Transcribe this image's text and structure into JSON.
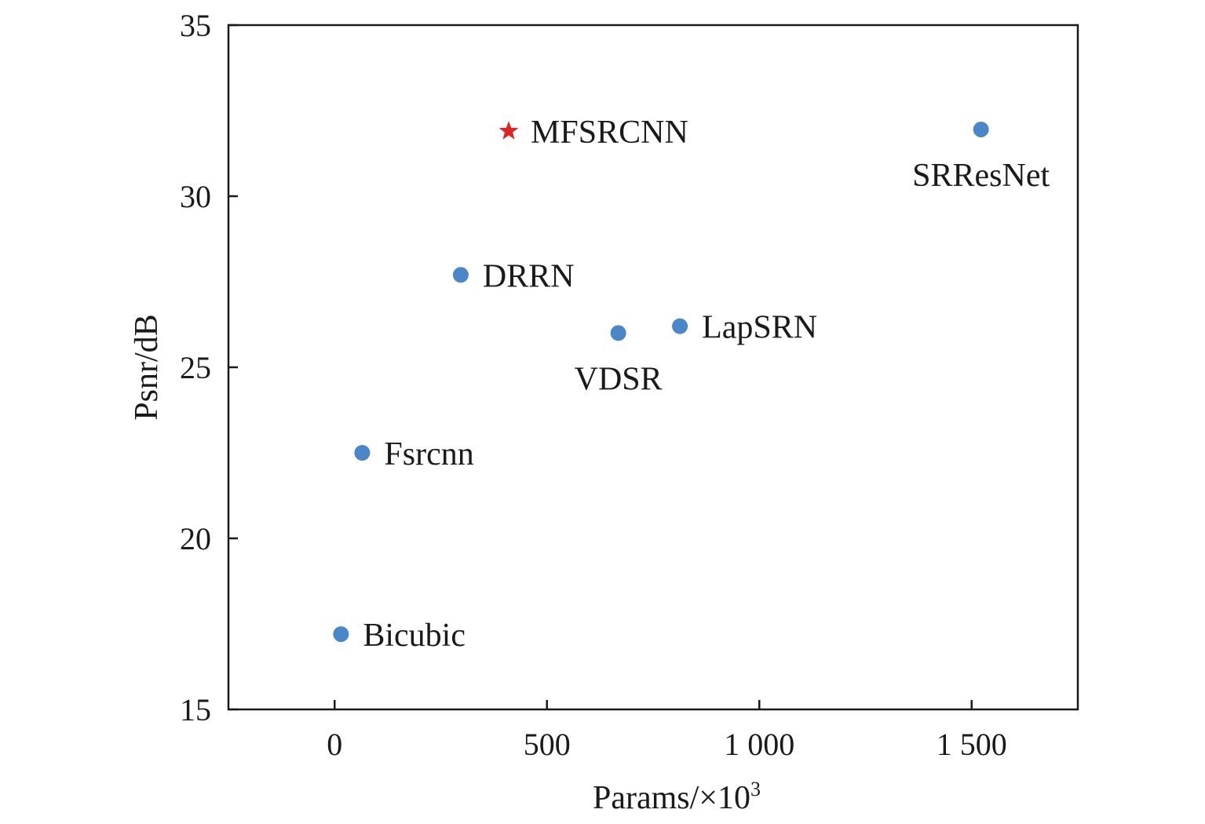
{
  "chart_data": {
    "type": "scatter",
    "title": "",
    "xlabel": "Params/×10",
    "xlabel_sup": "3",
    "ylabel": "Psnr/dB",
    "xlim": [
      -250,
      1750
    ],
    "ylim": [
      15,
      35
    ],
    "xticks": [
      0,
      500,
      1000,
      1500
    ],
    "xtick_labels": [
      "0",
      "500",
      "1 000",
      "1 500"
    ],
    "yticks": [
      15,
      20,
      25,
      30,
      35
    ],
    "ytick_labels": [
      "15",
      "20",
      "25",
      "30",
      "35"
    ],
    "grid": false,
    "legend": "none",
    "point_color": "#4a86c8",
    "highlight_color": "#e02424",
    "points": [
      {
        "name": "Bicubic",
        "x": 15,
        "y": 17.2,
        "marker": "circle",
        "label_pos": "right"
      },
      {
        "name": "Fsrcnn",
        "x": 65,
        "y": 22.5,
        "marker": "circle",
        "label_pos": "right"
      },
      {
        "name": "DRRN",
        "x": 297,
        "y": 27.7,
        "marker": "circle",
        "label_pos": "right"
      },
      {
        "name": "MFSRCNN",
        "x": 410,
        "y": 31.9,
        "marker": "star",
        "label_pos": "right"
      },
      {
        "name": "VDSR",
        "x": 668,
        "y": 26.0,
        "marker": "circle",
        "label_pos": "below"
      },
      {
        "name": "LapSRN",
        "x": 813,
        "y": 26.2,
        "marker": "circle",
        "label_pos": "right"
      },
      {
        "name": "SRResNet",
        "x": 1522,
        "y": 31.95,
        "marker": "circle",
        "label_pos": "below"
      }
    ]
  }
}
